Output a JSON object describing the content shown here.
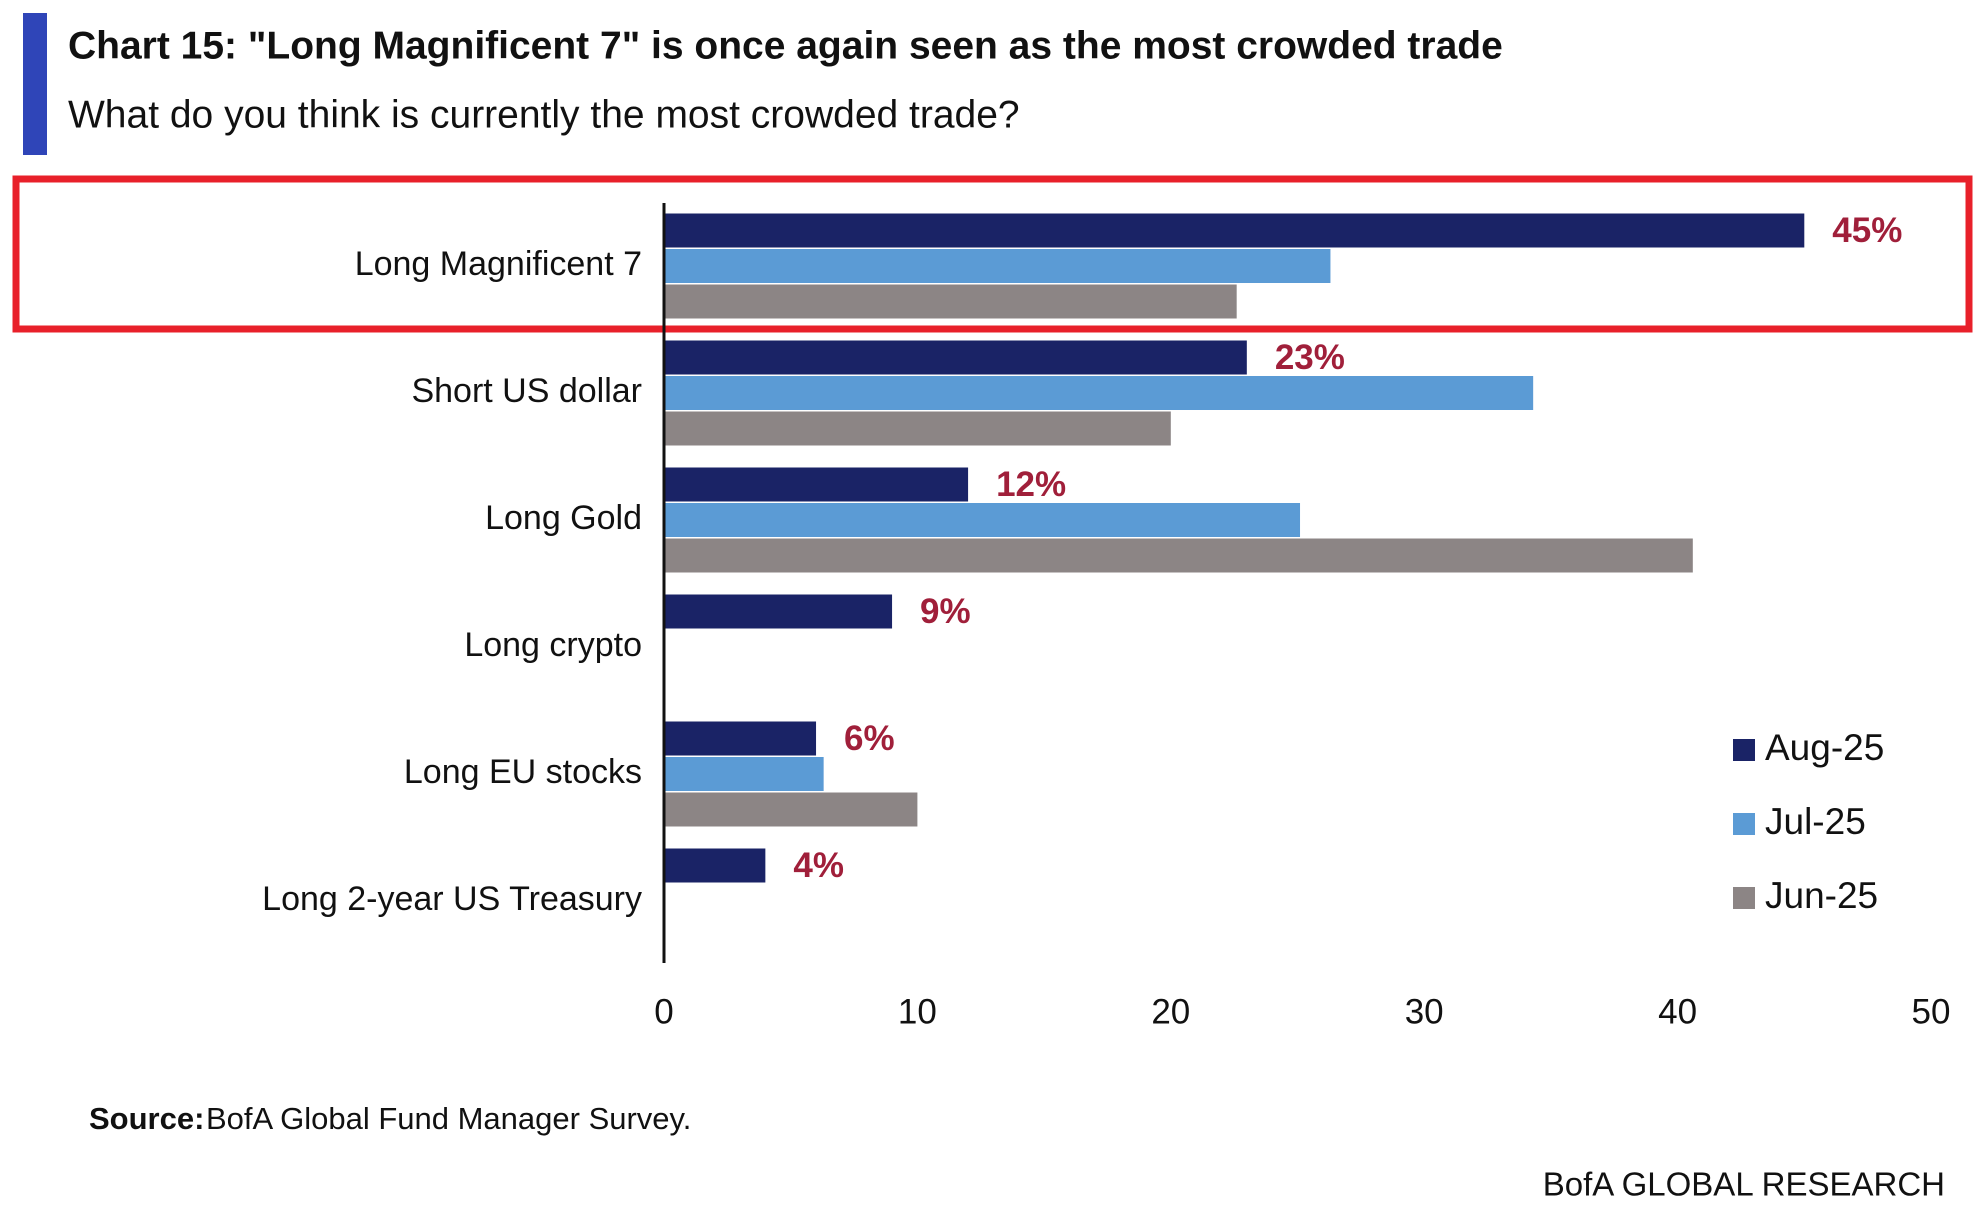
{
  "chart_data": {
    "type": "hbar",
    "title": "Chart 15: \"Long Magnificent 7\" is once again seen as the most crowded trade",
    "subtitle": "What do you think is currently the most crowded trade?",
    "categories": [
      "Long Magnificent 7",
      "Short US dollar",
      "Long Gold",
      "Long crypto",
      "Long EU stocks",
      "Long 2-year US Treasury"
    ],
    "series": [
      {
        "name": "Aug-25",
        "color": "#1a2366",
        "values": [
          45,
          23,
          12,
          9,
          6,
          4
        ],
        "value_labels": [
          "45%",
          "23%",
          "12%",
          "9%",
          "6%",
          "4%"
        ]
      },
      {
        "name": "Jul-25",
        "color": "#5b9bd5",
        "values": [
          26.3,
          34.3,
          25.1,
          null,
          6.3,
          null
        ]
      },
      {
        "name": "Jun-25",
        "color": "#8c8585",
        "values": [
          22.6,
          20,
          40.6,
          null,
          10,
          null
        ]
      }
    ],
    "xlim": [
      0,
      50
    ],
    "xticks": [
      0,
      10,
      20,
      30,
      40,
      50
    ],
    "legend": "right",
    "source_label": "Source:",
    "source": "BofA Global Fund Manager Survey.",
    "footer": "BofA GLOBAL RESEARCH"
  }
}
